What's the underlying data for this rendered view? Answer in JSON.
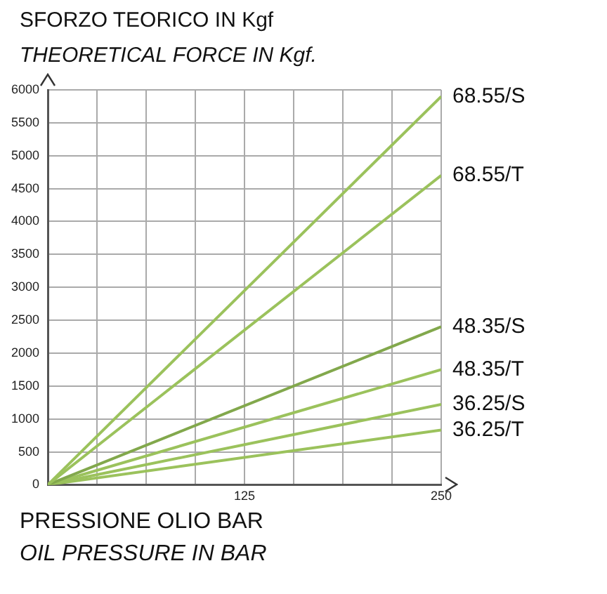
{
  "chart_data": {
    "type": "line",
    "title": "SFORZO TEORICO IN Kgf",
    "subtitle": "THEORETICAL FORCE  IN Kgf.",
    "xlabel": "PRESSIONE OLIO BAR",
    "annotations": [
      "OIL PRESSURE IN BAR"
    ],
    "x": [
      0,
      250
    ],
    "series": [
      {
        "name": "68.55/S",
        "color": "#9bc25c",
        "values": [
          0,
          5900
        ]
      },
      {
        "name": "68.55/T",
        "color": "#9bc25c",
        "values": [
          0,
          4700
        ]
      },
      {
        "name": "48.35/S",
        "color": "#82a84c",
        "values": [
          0,
          2400
        ]
      },
      {
        "name": "48.35/T",
        "color": "#9bc25c",
        "values": [
          0,
          1750
        ]
      },
      {
        "name": "36.25/S",
        "color": "#9bc25c",
        "values": [
          0,
          1220
        ]
      },
      {
        "name": "36.25/T",
        "color": "#9bc25c",
        "values": [
          0,
          830
        ]
      }
    ],
    "xlim": [
      0,
      250
    ],
    "xticks": [
      {
        "value": 0,
        "label": null
      },
      {
        "value": 31.25,
        "label": null
      },
      {
        "value": 62.5,
        "label": null
      },
      {
        "value": 93.75,
        "label": null
      },
      125,
      {
        "value": 156.25,
        "label": null
      },
      {
        "value": 187.5,
        "label": null
      },
      {
        "value": 218.75,
        "label": null
      },
      250
    ],
    "ylim": [
      0,
      6000
    ],
    "yticks": [
      0,
      500,
      1000,
      1500,
      2000,
      2500,
      3000,
      3500,
      4000,
      4500,
      5000,
      5500,
      6000
    ],
    "grid": true,
    "legend": false,
    "marker": "none",
    "line_style": "solid"
  }
}
